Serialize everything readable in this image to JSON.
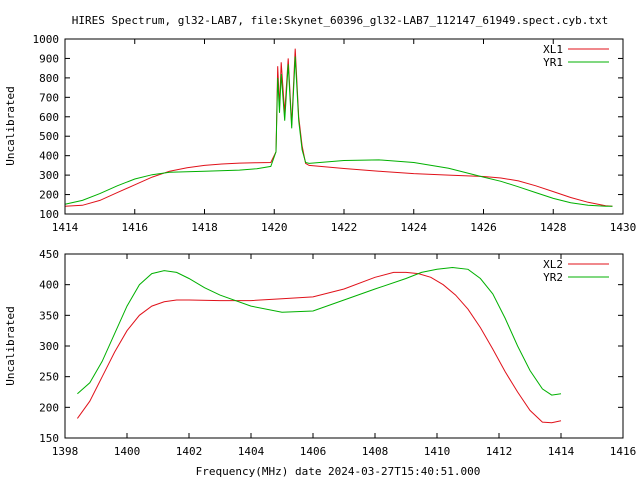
{
  "title": "HIRES Spectrum, gl32-LAB7, file:Skynet_60396_gl32-LAB7_112147_61949.spect.cyb.txt",
  "xlabel": "Frequency(MHz) date 2024-03-27T15:40:51.000",
  "colors": {
    "red": "#e0111a",
    "green": "#00b000",
    "axis": "#000000"
  },
  "chart_data": [
    {
      "type": "line",
      "ylabel": "Uncalibrated",
      "xlim": [
        1414,
        1430
      ],
      "ylim": [
        100,
        1000
      ],
      "xticks": [
        1414,
        1416,
        1418,
        1420,
        1422,
        1424,
        1426,
        1428,
        1430
      ],
      "yticks": [
        100,
        200,
        300,
        400,
        500,
        600,
        700,
        800,
        900,
        1000
      ],
      "grid": false,
      "legend_position": "top-right",
      "series": [
        {
          "name": "XL1",
          "color": "#e0111a",
          "points": [
            [
              1414.0,
              140
            ],
            [
              1414.5,
              145
            ],
            [
              1415.0,
              170
            ],
            [
              1415.5,
              210
            ],
            [
              1416.0,
              250
            ],
            [
              1416.5,
              290
            ],
            [
              1417.0,
              320
            ],
            [
              1417.5,
              338
            ],
            [
              1418.0,
              350
            ],
            [
              1418.5,
              357
            ],
            [
              1419.0,
              362
            ],
            [
              1419.5,
              364
            ],
            [
              1419.9,
              365
            ],
            [
              1420.05,
              420
            ],
            [
              1420.1,
              860
            ],
            [
              1420.15,
              650
            ],
            [
              1420.2,
              880
            ],
            [
              1420.3,
              620
            ],
            [
              1420.4,
              900
            ],
            [
              1420.5,
              560
            ],
            [
              1420.6,
              950
            ],
            [
              1420.7,
              600
            ],
            [
              1420.8,
              450
            ],
            [
              1420.9,
              360
            ],
            [
              1421.0,
              350
            ],
            [
              1422.0,
              334
            ],
            [
              1423.0,
              320
            ],
            [
              1424.0,
              308
            ],
            [
              1425.0,
              300
            ],
            [
              1426.0,
              293
            ],
            [
              1426.5,
              285
            ],
            [
              1427.0,
              270
            ],
            [
              1427.5,
              245
            ],
            [
              1428.0,
              215
            ],
            [
              1428.5,
              185
            ],
            [
              1429.0,
              160
            ],
            [
              1429.5,
              142
            ],
            [
              1429.7,
              140
            ]
          ]
        },
        {
          "name": "YR1",
          "color": "#00b000",
          "points": [
            [
              1414.0,
              150
            ],
            [
              1414.5,
              170
            ],
            [
              1415.0,
              205
            ],
            [
              1415.5,
              245
            ],
            [
              1416.0,
              280
            ],
            [
              1416.5,
              302
            ],
            [
              1417.0,
              315
            ],
            [
              1418.0,
              320
            ],
            [
              1419.0,
              326
            ],
            [
              1419.5,
              333
            ],
            [
              1419.9,
              345
            ],
            [
              1420.05,
              420
            ],
            [
              1420.1,
              800
            ],
            [
              1420.15,
              620
            ],
            [
              1420.2,
              820
            ],
            [
              1420.3,
              580
            ],
            [
              1420.4,
              870
            ],
            [
              1420.5,
              540
            ],
            [
              1420.6,
              910
            ],
            [
              1420.7,
              580
            ],
            [
              1420.8,
              430
            ],
            [
              1420.9,
              365
            ],
            [
              1421.0,
              360
            ],
            [
              1422.0,
              375
            ],
            [
              1423.0,
              378
            ],
            [
              1424.0,
              365
            ],
            [
              1425.0,
              335
            ],
            [
              1426.0,
              290
            ],
            [
              1426.5,
              268
            ],
            [
              1427.0,
              240
            ],
            [
              1427.5,
              210
            ],
            [
              1428.0,
              180
            ],
            [
              1428.5,
              158
            ],
            [
              1429.0,
              145
            ],
            [
              1429.5,
              140
            ],
            [
              1429.7,
              140
            ]
          ]
        }
      ]
    },
    {
      "type": "line",
      "ylabel": "Uncalibrated",
      "xlim": [
        1398,
        1416
      ],
      "ylim": [
        150,
        450
      ],
      "xticks": [
        1398,
        1400,
        1402,
        1404,
        1406,
        1408,
        1410,
        1412,
        1414,
        1416
      ],
      "yticks": [
        150,
        200,
        250,
        300,
        350,
        400,
        450
      ],
      "grid": false,
      "legend_position": "top-right",
      "series": [
        {
          "name": "XL2",
          "color": "#e0111a",
          "points": [
            [
              1398.4,
              182
            ],
            [
              1398.8,
              210
            ],
            [
              1399.2,
              250
            ],
            [
              1399.6,
              290
            ],
            [
              1400.0,
              325
            ],
            [
              1400.4,
              350
            ],
            [
              1400.8,
              365
            ],
            [
              1401.2,
              372
            ],
            [
              1401.6,
              375
            ],
            [
              1402.0,
              375
            ],
            [
              1403.0,
              374
            ],
            [
              1404.0,
              374
            ],
            [
              1405.0,
              377
            ],
            [
              1406.0,
              380
            ],
            [
              1407.0,
              393
            ],
            [
              1408.0,
              412
            ],
            [
              1408.6,
              420
            ],
            [
              1409.0,
              420
            ],
            [
              1409.4,
              418
            ],
            [
              1409.8,
              412
            ],
            [
              1410.2,
              400
            ],
            [
              1410.6,
              383
            ],
            [
              1411.0,
              360
            ],
            [
              1411.4,
              330
            ],
            [
              1411.8,
              295
            ],
            [
              1412.2,
              258
            ],
            [
              1412.6,
              225
            ],
            [
              1413.0,
              195
            ],
            [
              1413.4,
              176
            ],
            [
              1413.7,
              175
            ],
            [
              1414.0,
              178
            ]
          ]
        },
        {
          "name": "YR2",
          "color": "#00b000",
          "points": [
            [
              1398.4,
              222
            ],
            [
              1398.8,
              240
            ],
            [
              1399.2,
              275
            ],
            [
              1399.6,
              320
            ],
            [
              1400.0,
              365
            ],
            [
              1400.4,
              400
            ],
            [
              1400.8,
              418
            ],
            [
              1401.2,
              423
            ],
            [
              1401.6,
              420
            ],
            [
              1402.0,
              410
            ],
            [
              1402.5,
              395
            ],
            [
              1403.0,
              383
            ],
            [
              1404.0,
              365
            ],
            [
              1405.0,
              355
            ],
            [
              1406.0,
              357
            ],
            [
              1407.0,
              375
            ],
            [
              1408.0,
              393
            ],
            [
              1409.0,
              410
            ],
            [
              1409.5,
              420
            ],
            [
              1410.0,
              425
            ],
            [
              1410.5,
              428
            ],
            [
              1411.0,
              425
            ],
            [
              1411.4,
              410
            ],
            [
              1411.8,
              385
            ],
            [
              1412.2,
              345
            ],
            [
              1412.6,
              300
            ],
            [
              1413.0,
              260
            ],
            [
              1413.4,
              230
            ],
            [
              1413.7,
              220
            ],
            [
              1414.0,
              222
            ]
          ]
        }
      ]
    }
  ]
}
